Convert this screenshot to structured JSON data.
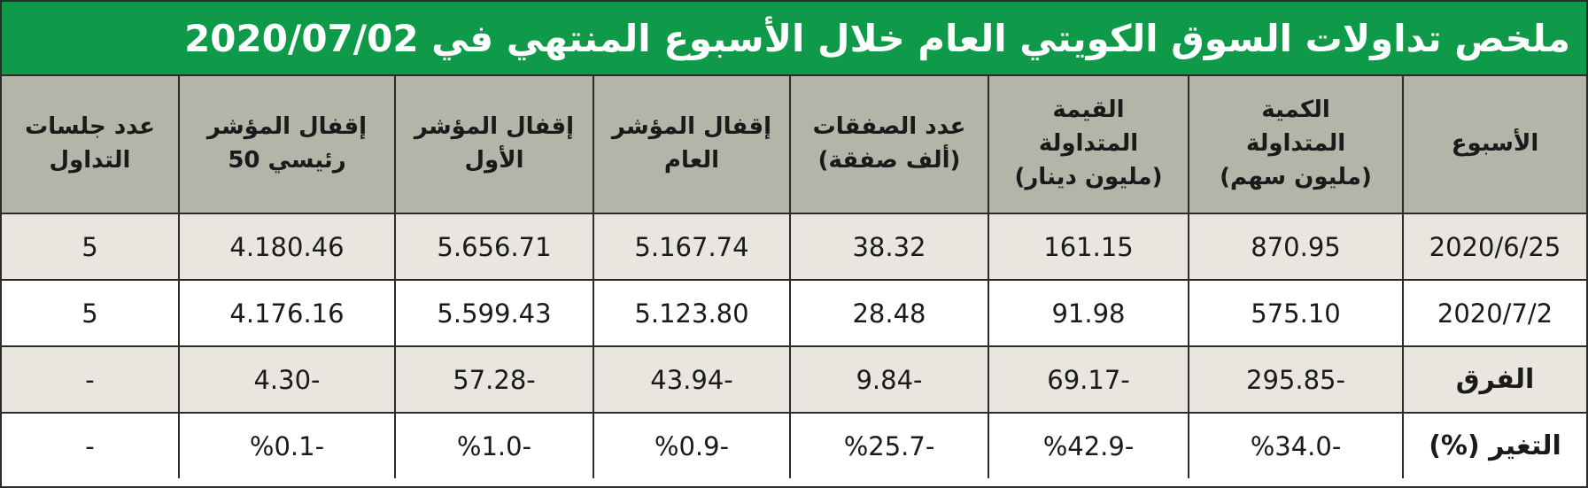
{
  "header": {
    "title": "ملخص تداولات السوق الكويتي العام خلال الأسبوع المنتهي في 2020/07/02"
  },
  "table": {
    "columns": [
      "الأسبوع",
      "الكمية\nالمتداولة\n(مليون سهم)",
      "القيمة\nالمتداولة\n(مليون دينار)",
      "عدد الصفقات\n(ألف صفقة)",
      "إقفال المؤشر\nالعام",
      "إقفال المؤشر\nالأول",
      "إقفال المؤشر\nرئيسي 50",
      "عدد جلسات\nالتداول"
    ],
    "rows": [
      [
        "2020/6/25",
        "870.95",
        "161.15",
        "38.32",
        "5.167.74",
        "5.656.71",
        "4.180.46",
        "5"
      ],
      [
        "2020/7/2",
        "575.10",
        "91.98",
        "28.48",
        "5.123.80",
        "5.599.43",
        "4.176.16",
        "5"
      ],
      [
        "الفرق",
        "295.85-",
        "69.17-",
        "9.84-",
        "43.94-",
        "57.28-",
        "4.30-",
        "-"
      ],
      [
        "التغير (%)",
        "%34.0-",
        "%42.9-",
        "%25.7-",
        "%0.9-",
        "%1.0-",
        "%0.1-",
        "-"
      ]
    ]
  }
}
